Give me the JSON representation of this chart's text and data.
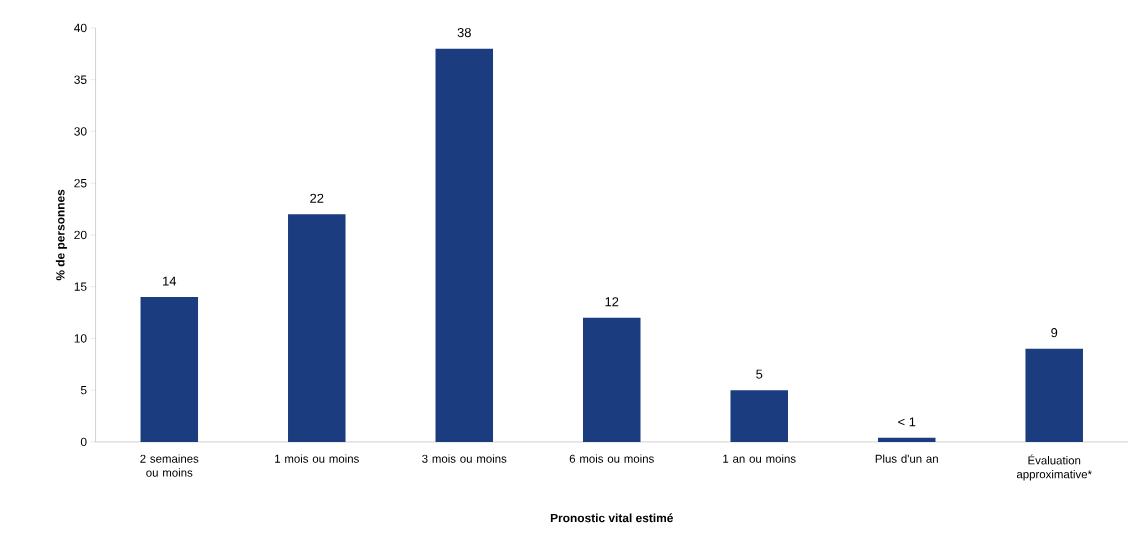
{
  "chart_data": {
    "type": "bar",
    "xlabel": "Pronostic vital estimé",
    "ylabel": "% de personnes",
    "categories": [
      "2 semaines ou moins",
      "1 mois ou moins",
      "3 mois ou moins",
      "6 mois ou moins",
      "1 an ou moins",
      "Plus d'un an",
      "Évaluation approximative*"
    ],
    "values": [
      14,
      22,
      38,
      12,
      5,
      0.4,
      9
    ],
    "value_labels": [
      "14",
      "22",
      "38",
      "12",
      "5",
      "< 1",
      "9"
    ],
    "color": "#1b3d7f",
    "ylim": [
      0,
      40
    ],
    "yticks": [
      0,
      5,
      10,
      15,
      20,
      25,
      30,
      35,
      40
    ],
    "grid": false
  }
}
